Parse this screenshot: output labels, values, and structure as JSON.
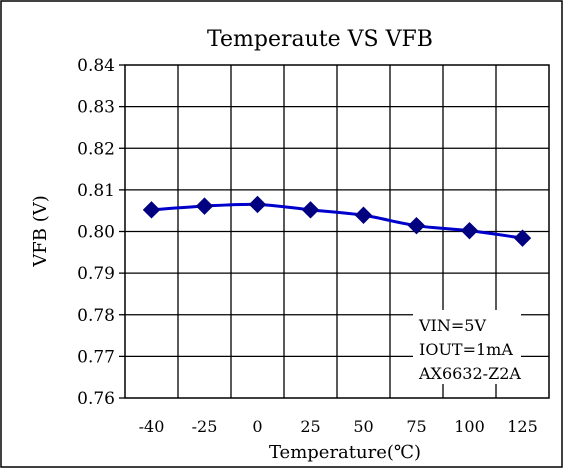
{
  "chart_data": {
    "type": "line",
    "title": "Temperaute VS VFB",
    "xlabel": "Temperature(℃)",
    "ylabel": "VFB (V)",
    "categories": [
      "-40",
      "-25",
      "0",
      "25",
      "50",
      "75",
      "100",
      "125"
    ],
    "y_ticks": [
      "0.76",
      "0.77",
      "0.78",
      "0.79",
      "0.80",
      "0.81",
      "0.82",
      "0.83",
      "0.84"
    ],
    "ylim": [
      0.76,
      0.84
    ],
    "grid": true,
    "series": [
      {
        "values": [
          0.8052,
          0.8061,
          0.8065,
          0.8052,
          0.8039,
          0.8014,
          0.8002,
          0.7984
        ],
        "color": "#0000cc",
        "marker": "diamond"
      }
    ],
    "annotation": [
      "VIN=5V",
      "IOUT=1mA",
      "AX6632-Z2A"
    ]
  }
}
